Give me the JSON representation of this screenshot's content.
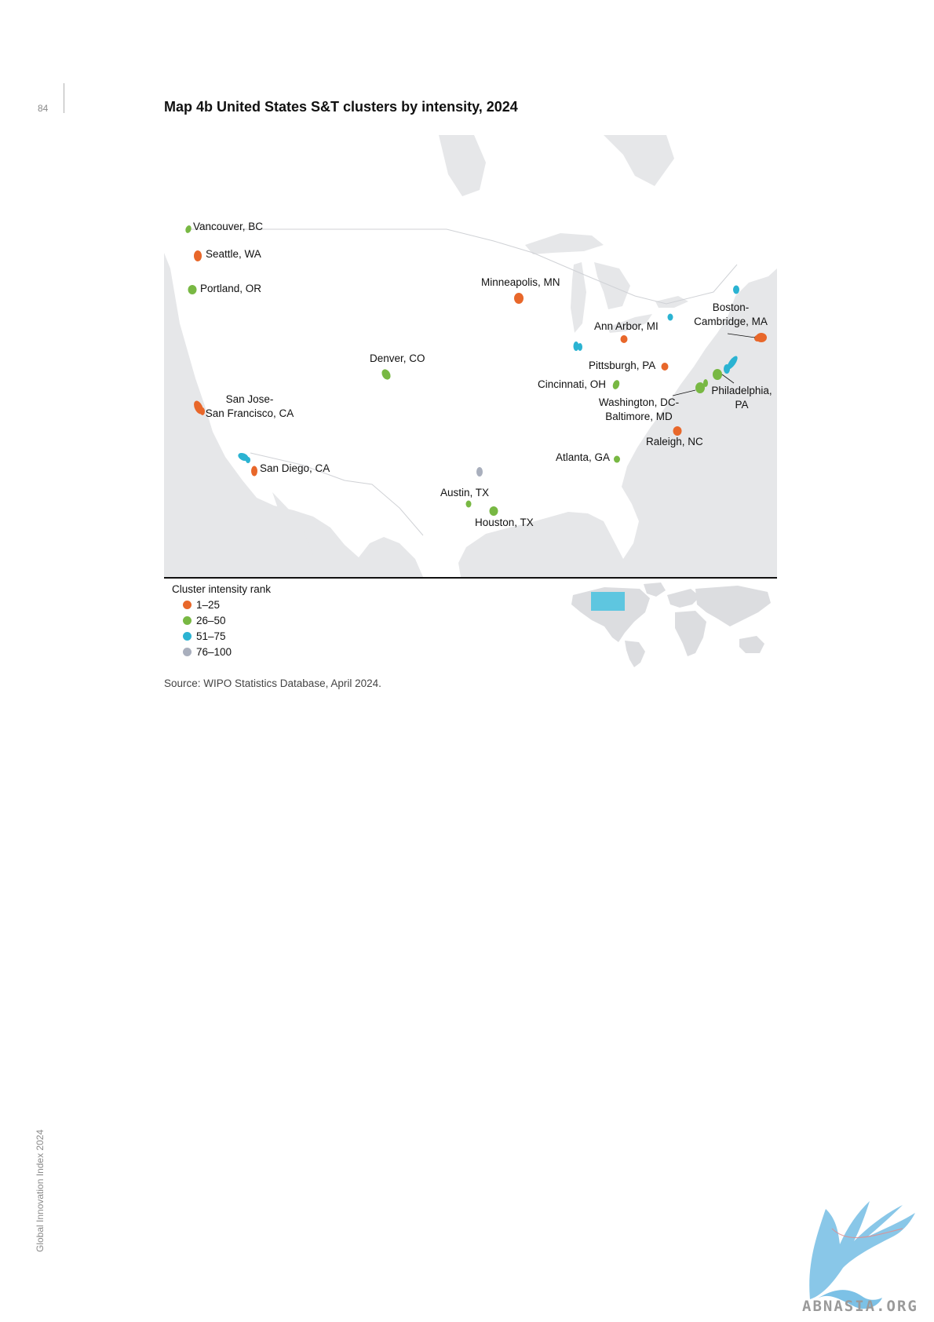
{
  "page": {
    "number": "84",
    "title": "Map 4b United States S&T clusters by intensity, 2024",
    "source": "Source: WIPO Statistics Database, April 2024.",
    "footer_vertical": "Global Innovation Index 2024",
    "logo_text": "ABNASIA.ORG"
  },
  "colors": {
    "rank_1_25": "#e8672a",
    "rank_26_50": "#78b843",
    "rank_51_75": "#2bb3d2",
    "rank_76_100": "#a9afbd",
    "land": "#ffffff",
    "water": "#e6e7e9",
    "inset_highlight": "#5ec6e0"
  },
  "legend": {
    "title": "Cluster intensity rank",
    "items": [
      {
        "label": "1–25",
        "color": "#e8672a"
      },
      {
        "label": "26–50",
        "color": "#78b843"
      },
      {
        "label": "51–75",
        "color": "#2bb3d2"
      },
      {
        "label": "76–100",
        "color": "#a9afbd"
      }
    ]
  },
  "map": {
    "labels": {
      "vancouver": "Vancouver, BC",
      "seattle": "Seattle, WA",
      "portland": "Portland, OR",
      "minneapolis": "Minneapolis, MN",
      "boston_1": "Boston-",
      "boston_2": "Cambridge, MA",
      "ann_arbor": "Ann Arbor, MI",
      "denver": "Denver, CO",
      "pittsburgh": "Pittsburgh, PA",
      "cincinnati": "Cincinnati, OH",
      "philadelphia_1": "Philadelphia,",
      "philadelphia_2": "PA",
      "san_jose_1": "San Jose-",
      "san_jose_2": "San Francisco, CA",
      "washington_1": "Washington, DC-",
      "washington_2": "Baltimore, MD",
      "raleigh": "Raleigh, NC",
      "atlanta": "Atlanta, GA",
      "san_diego": "San Diego, CA",
      "austin": "Austin, TX",
      "houston": "Houston, TX"
    }
  }
}
